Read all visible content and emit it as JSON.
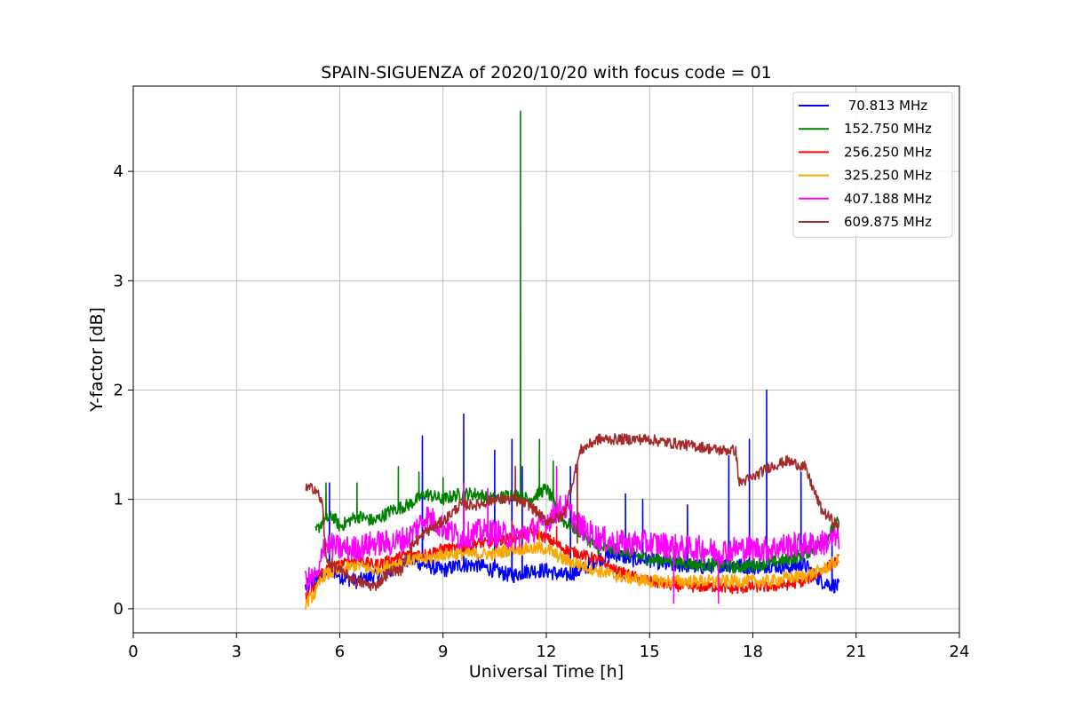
{
  "chart_data": {
    "type": "line",
    "title": "SPAIN-SIGUENZA of 2020/10/20 with focus code = 01",
    "xlabel": "Universal Time [h]",
    "ylabel": "Y-factor [dB]",
    "xlim": [
      0,
      24
    ],
    "ylim": [
      -0.22,
      4.78
    ],
    "xticks": [
      0,
      3,
      6,
      9,
      12,
      15,
      18,
      21,
      24
    ],
    "yticks": [
      0,
      1,
      2,
      3,
      4
    ],
    "grid": true,
    "legend_position": "top-right",
    "series": [
      {
        "name": " 70.813 MHz",
        "color": "#0000ff",
        "x": [
          5.0,
          5.3,
          5.5,
          5.8,
          6.0,
          6.5,
          7.0,
          7.5,
          8.0,
          8.5,
          9.0,
          9.5,
          10.0,
          10.5,
          11.0,
          11.5,
          12.0,
          12.5,
          13.0,
          13.5,
          14.0,
          14.5,
          15.0,
          15.5,
          16.0,
          16.5,
          17.0,
          17.5,
          18.0,
          18.5,
          19.0,
          19.5,
          20.0,
          20.5
        ],
        "y": [
          0.2,
          0.25,
          0.3,
          0.35,
          0.3,
          0.25,
          0.3,
          0.35,
          0.45,
          0.4,
          0.35,
          0.4,
          0.4,
          0.35,
          0.3,
          0.35,
          0.35,
          0.3,
          0.35,
          0.45,
          0.5,
          0.45,
          0.45,
          0.4,
          0.4,
          0.38,
          0.4,
          0.4,
          0.38,
          0.4,
          0.38,
          0.4,
          0.25,
          0.2
        ],
        "spikes": [
          [
            5.7,
            1.15
          ],
          [
            8.4,
            1.58
          ],
          [
            9.6,
            1.78
          ],
          [
            10.5,
            1.45
          ],
          [
            11.0,
            1.55
          ],
          [
            11.3,
            1.3
          ],
          [
            12.7,
            1.3
          ],
          [
            14.3,
            1.05
          ],
          [
            14.8,
            1.0
          ],
          [
            16.1,
            0.95
          ],
          [
            17.3,
            1.4
          ],
          [
            17.9,
            1.55
          ],
          [
            18.4,
            2.0
          ],
          [
            19.4,
            1.25
          ],
          [
            20.3,
            0.75
          ]
        ],
        "noise": 0.07
      },
      {
        "name": "152.750 MHz",
        "color": "#008000",
        "x": [
          5.3,
          5.5,
          5.8,
          6.0,
          6.5,
          7.0,
          7.5,
          8.0,
          8.5,
          9.0,
          9.5,
          10.0,
          10.5,
          11.0,
          11.5,
          12.0,
          12.5,
          13.0,
          13.5,
          14.0,
          14.5,
          15.0,
          15.5,
          16.0,
          16.5,
          17.0,
          17.5,
          18.0,
          18.5,
          19.0,
          19.5,
          20.0,
          20.5
        ],
        "y": [
          0.7,
          0.8,
          0.85,
          0.75,
          0.85,
          0.8,
          0.9,
          0.95,
          1.05,
          1.0,
          1.05,
          1.05,
          1.0,
          1.05,
          1.0,
          1.1,
          0.8,
          0.7,
          0.55,
          0.55,
          0.5,
          0.45,
          0.45,
          0.42,
          0.4,
          0.4,
          0.38,
          0.4,
          0.42,
          0.45,
          0.5,
          0.6,
          0.8
        ],
        "spikes": [
          [
            5.6,
            1.15
          ],
          [
            6.5,
            1.15
          ],
          [
            7.7,
            1.3
          ],
          [
            8.3,
            1.25
          ],
          [
            9.0,
            1.2
          ],
          [
            11.25,
            4.55
          ],
          [
            11.8,
            1.55
          ],
          [
            12.2,
            1.35
          ]
        ],
        "noise": 0.06
      },
      {
        "name": "256.250 MHz",
        "color": "#ff0000",
        "x": [
          5.0,
          5.3,
          5.5,
          6.0,
          6.5,
          7.0,
          7.5,
          8.0,
          8.5,
          9.0,
          9.5,
          10.0,
          10.5,
          11.0,
          11.5,
          12.0,
          12.5,
          13.0,
          13.5,
          14.0,
          14.5,
          15.0,
          15.5,
          16.0,
          16.5,
          17.0,
          17.5,
          18.0,
          18.5,
          19.0,
          19.5,
          20.0,
          20.5
        ],
        "y": [
          0.1,
          0.2,
          0.35,
          0.4,
          0.45,
          0.4,
          0.45,
          0.5,
          0.5,
          0.55,
          0.55,
          0.6,
          0.6,
          0.65,
          0.7,
          0.65,
          0.55,
          0.5,
          0.45,
          0.35,
          0.3,
          0.25,
          0.22,
          0.2,
          0.2,
          0.2,
          0.18,
          0.2,
          0.2,
          0.22,
          0.25,
          0.35,
          0.45
        ],
        "spikes": [
          [
            11.0,
            0.8
          ],
          [
            12.3,
            0.75
          ]
        ],
        "noise": 0.05
      },
      {
        "name": "325.250 MHz",
        "color": "#ffa500",
        "x": [
          5.0,
          5.3,
          5.5,
          6.0,
          6.5,
          7.0,
          7.5,
          8.0,
          8.5,
          9.0,
          9.5,
          10.0,
          10.5,
          11.0,
          11.5,
          12.0,
          12.5,
          13.0,
          13.5,
          14.0,
          14.5,
          15.0,
          15.5,
          16.0,
          16.5,
          17.0,
          17.5,
          18.0,
          18.5,
          19.0,
          19.5,
          20.0,
          20.5
        ],
        "y": [
          0.05,
          0.15,
          0.3,
          0.35,
          0.4,
          0.35,
          0.4,
          0.45,
          0.45,
          0.5,
          0.5,
          0.5,
          0.5,
          0.55,
          0.55,
          0.55,
          0.45,
          0.4,
          0.35,
          0.3,
          0.28,
          0.25,
          0.25,
          0.25,
          0.25,
          0.25,
          0.25,
          0.25,
          0.25,
          0.28,
          0.3,
          0.35,
          0.45
        ],
        "spikes": [
          [
            11.8,
            0.75
          ]
        ],
        "noise": 0.06
      },
      {
        "name": "407.188 MHz",
        "color": "#ff00ff",
        "x": [
          5.0,
          5.4,
          5.5,
          6.0,
          6.5,
          7.0,
          7.5,
          8.0,
          8.5,
          9.0,
          9.5,
          10.0,
          10.5,
          11.0,
          11.5,
          12.0,
          12.5,
          13.0,
          13.5,
          14.0,
          14.5,
          15.0,
          15.5,
          16.0,
          16.5,
          17.0,
          17.5,
          18.0,
          18.5,
          19.0,
          19.5,
          20.0,
          20.5
        ],
        "y": [
          0.25,
          0.3,
          0.6,
          0.55,
          0.55,
          0.6,
          0.6,
          0.65,
          0.85,
          0.75,
          0.65,
          0.7,
          0.7,
          0.65,
          0.7,
          0.8,
          0.95,
          0.75,
          0.65,
          0.6,
          0.6,
          0.6,
          0.58,
          0.55,
          0.55,
          0.52,
          0.55,
          0.55,
          0.55,
          0.58,
          0.58,
          0.6,
          0.65
        ],
        "spikes": [
          [
            9.6,
            1.15
          ],
          [
            10.3,
            1.1
          ],
          [
            12.3,
            1.3
          ],
          [
            15.7,
            0.05
          ],
          [
            17.0,
            0.05
          ]
        ],
        "noise": 0.12
      },
      {
        "name": "609.875 MHz",
        "color": "#a52a2a",
        "x": [
          5.0,
          5.3,
          5.5,
          5.6,
          6.0,
          6.5,
          7.0,
          7.5,
          7.8,
          8.0,
          8.5,
          9.0,
          9.5,
          10.0,
          10.5,
          11.0,
          11.5,
          12.0,
          12.5,
          13.0,
          13.5,
          14.0,
          14.5,
          15.0,
          15.5,
          16.0,
          16.5,
          17.0,
          17.5,
          17.6,
          18.0,
          18.5,
          19.0,
          19.5,
          20.0,
          20.5
        ],
        "y": [
          1.1,
          1.1,
          0.95,
          0.45,
          0.35,
          0.25,
          0.2,
          0.35,
          0.35,
          0.55,
          0.7,
          0.8,
          0.95,
          0.95,
          1.0,
          1.0,
          0.95,
          0.8,
          0.85,
          1.45,
          1.55,
          1.55,
          1.55,
          1.55,
          1.52,
          1.5,
          1.48,
          1.45,
          1.45,
          1.15,
          1.2,
          1.3,
          1.35,
          1.3,
          0.9,
          0.75
        ],
        "spikes": [
          [
            11.1,
            1.3
          ],
          [
            12.9,
            0.6
          ]
        ],
        "noise": 0.05
      }
    ]
  }
}
